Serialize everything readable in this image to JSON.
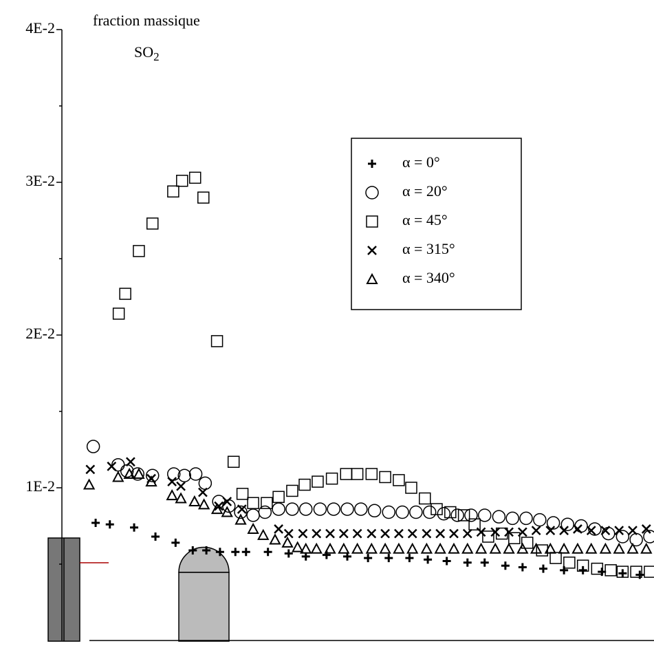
{
  "chart_data": {
    "type": "scatter",
    "title": "fraction massique",
    "subtitle": "SO2",
    "xlim": [
      0,
      100
    ],
    "ylim": [
      0,
      0.04
    ],
    "yticks": [
      {
        "value": 0.01,
        "label": "1E-2"
      },
      {
        "value": 0.02,
        "label": "2E-2"
      },
      {
        "value": 0.03,
        "label": "3E-2"
      },
      {
        "value": 0.04,
        "label": "4E-2"
      }
    ],
    "minor_yticks": [
      0.005,
      0.015,
      0.025,
      0.035
    ],
    "legend": "upper right",
    "series": [
      {
        "name": "α = 0°",
        "marker": "plus",
        "color": "#000000",
        "x": [
          5.7,
          8.1,
          12.2,
          15.8,
          19.2,
          22.1,
          24.4,
          26.7,
          29.3,
          31.1,
          34.8,
          38.3,
          41.2,
          44.7,
          48.2,
          51.7,
          55.2,
          58.7,
          61.8,
          65.0,
          68.5,
          71.4,
          74.9,
          77.8,
          81.3,
          84.8,
          88.0,
          91.2,
          94.7,
          97.6
        ],
        "values": [
          0.0077,
          0.0076,
          0.0074,
          0.0068,
          0.0064,
          0.0059,
          0.0059,
          0.0058,
          0.0058,
          0.0058,
          0.0058,
          0.0057,
          0.0055,
          0.0056,
          0.0055,
          0.0054,
          0.0054,
          0.0054,
          0.0053,
          0.0052,
          0.0051,
          0.0051,
          0.0049,
          0.0048,
          0.0047,
          0.0046,
          0.0046,
          0.0045,
          0.0044,
          0.0043
        ]
      },
      {
        "name": "α = 20°",
        "marker": "circle",
        "color": "#000000",
        "x": [
          5.3,
          9.5,
          11.0,
          12.8,
          15.3,
          18.9,
          20.7,
          22.6,
          24.2,
          26.5,
          28.2,
          30.2,
          32.3,
          34.3,
          36.6,
          38.9,
          41.2,
          43.6,
          45.9,
          48.2,
          50.5,
          52.8,
          55.2,
          57.5,
          59.8,
          62.1,
          64.5,
          66.8,
          69.1,
          71.4,
          73.8,
          76.1,
          78.4,
          80.7,
          83.0,
          85.4,
          87.7,
          90.0,
          92.3,
          94.7,
          97.0,
          99.3
        ],
        "values": [
          0.0127,
          0.0115,
          0.0111,
          0.0109,
          0.0108,
          0.0109,
          0.0108,
          0.0109,
          0.0103,
          0.0091,
          0.0088,
          0.0084,
          0.0082,
          0.0084,
          0.0086,
          0.0086,
          0.0086,
          0.0086,
          0.0086,
          0.0086,
          0.0086,
          0.0085,
          0.0084,
          0.0084,
          0.0084,
          0.0084,
          0.0083,
          0.0082,
          0.0082,
          0.0082,
          0.0081,
          0.008,
          0.008,
          0.0079,
          0.0077,
          0.0076,
          0.0075,
          0.0073,
          0.007,
          0.0068,
          0.0066,
          0.0068
        ]
      },
      {
        "name": "α = 45°",
        "marker": "square",
        "color": "#000000",
        "x": [
          9.6,
          10.7,
          13.0,
          15.3,
          18.8,
          20.3,
          22.5,
          23.9,
          26.2,
          29.0,
          30.5,
          32.3,
          34.6,
          36.6,
          38.9,
          41.0,
          43.2,
          45.6,
          48.0,
          49.9,
          52.3,
          54.6,
          56.9,
          59.0,
          61.3,
          63.3,
          65.6,
          67.9,
          69.7,
          72.0,
          74.3,
          76.4,
          78.6,
          81.1,
          83.4,
          85.7,
          88.0,
          90.4,
          92.7,
          94.7,
          97.0,
          99.3
        ],
        "values": [
          0.0214,
          0.0227,
          0.0255,
          0.0273,
          0.0294,
          0.0301,
          0.0303,
          0.029,
          0.0196,
          0.0117,
          0.0096,
          0.009,
          0.009,
          0.0094,
          0.0098,
          0.0102,
          0.0104,
          0.0106,
          0.0109,
          0.0109,
          0.0109,
          0.0107,
          0.0105,
          0.01,
          0.0093,
          0.0086,
          0.0084,
          0.0082,
          0.0076,
          0.0068,
          0.007,
          0.0067,
          0.0064,
          0.0059,
          0.0054,
          0.0051,
          0.0049,
          0.0047,
          0.0046,
          0.0045,
          0.0045,
          0.0045
        ]
      },
      {
        "name": "α = 315°",
        "marker": "x",
        "color": "#000000",
        "x": [
          4.8,
          8.4,
          11.6,
          15.1,
          18.6,
          20.1,
          23.8,
          26.5,
          27.9,
          30.4,
          36.6,
          38.3,
          40.7,
          43.0,
          45.3,
          47.6,
          49.9,
          52.3,
          54.6,
          56.9,
          59.2,
          61.6,
          63.9,
          66.2,
          68.5,
          70.8,
          73.2,
          75.5,
          77.8,
          80.1,
          82.5,
          84.8,
          87.1,
          89.4,
          91.8,
          94.1,
          96.4,
          98.7
        ],
        "values": [
          0.0112,
          0.0114,
          0.0117,
          0.0106,
          0.0104,
          0.0101,
          0.0097,
          0.0088,
          0.0091,
          0.0086,
          0.0073,
          0.007,
          0.007,
          0.007,
          0.007,
          0.007,
          0.007,
          0.007,
          0.007,
          0.007,
          0.007,
          0.007,
          0.007,
          0.007,
          0.007,
          0.0071,
          0.0071,
          0.0071,
          0.0071,
          0.0072,
          0.0072,
          0.0072,
          0.0073,
          0.0072,
          0.0072,
          0.0072,
          0.0072,
          0.0073
        ]
      },
      {
        "name": "α = 340°",
        "marker": "triangle",
        "color": "#000000",
        "x": [
          4.6,
          9.5,
          11.4,
          13.0,
          15.1,
          18.6,
          20.1,
          22.4,
          24.0,
          26.2,
          27.9,
          30.2,
          32.3,
          34.0,
          36.0,
          38.1,
          39.8,
          41.2,
          43.0,
          45.3,
          47.6,
          49.9,
          52.3,
          54.6,
          56.9,
          59.2,
          61.6,
          63.9,
          66.2,
          68.5,
          70.8,
          73.2,
          75.5,
          77.8,
          80.1,
          82.5,
          84.8,
          87.1,
          89.4,
          91.8,
          94.1,
          96.4,
          98.7
        ],
        "values": [
          0.0102,
          0.0107,
          0.0109,
          0.0109,
          0.0104,
          0.0095,
          0.0093,
          0.0091,
          0.0089,
          0.0086,
          0.0084,
          0.0079,
          0.0073,
          0.0069,
          0.0066,
          0.0064,
          0.0061,
          0.006,
          0.006,
          0.006,
          0.006,
          0.006,
          0.006,
          0.006,
          0.006,
          0.006,
          0.006,
          0.006,
          0.006,
          0.006,
          0.006,
          0.006,
          0.006,
          0.006,
          0.006,
          0.006,
          0.006,
          0.006,
          0.006,
          0.006,
          0.006,
          0.006,
          0.006
        ]
      }
    ]
  }
}
